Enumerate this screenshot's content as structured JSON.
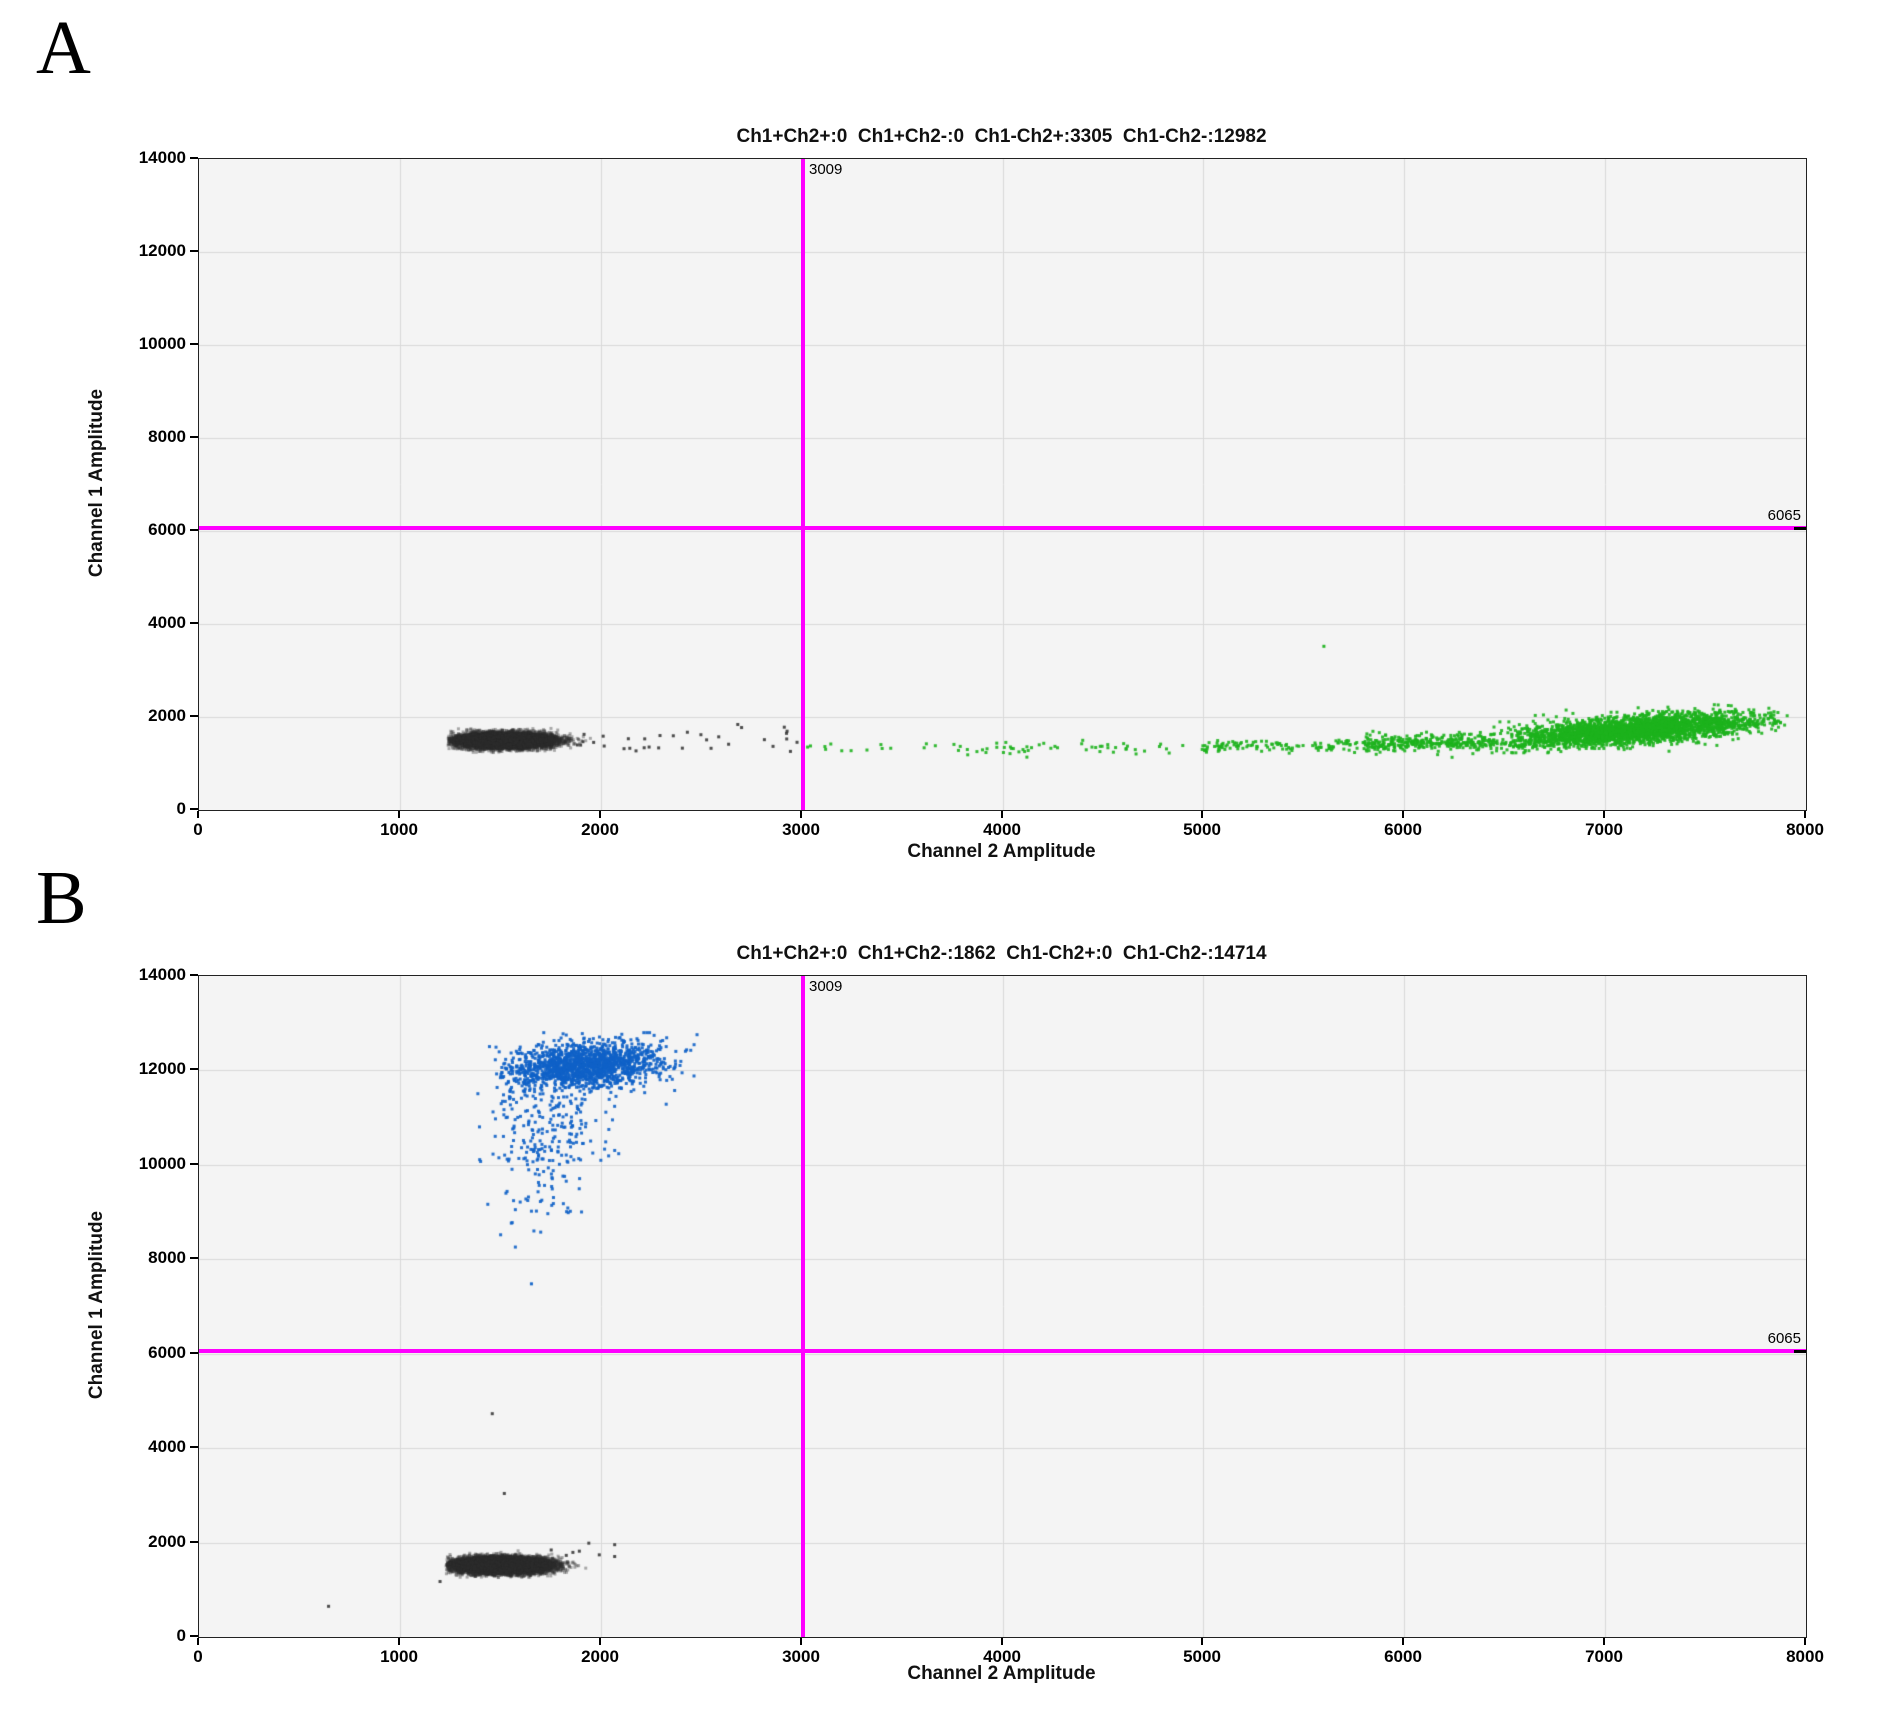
{
  "panel_letters": [
    "A",
    "B"
  ],
  "chart_data": [
    {
      "panel": "A",
      "type": "scatter",
      "title": "Ch1+Ch2+:0  Ch1+Ch2-:0  Ch1-Ch2+:3305  Ch1-Ch2-:12982",
      "quadrant_counts": {
        "ch1pos_ch2pos": 0,
        "ch1pos_ch2neg": 0,
        "ch1neg_ch2pos": 3305,
        "ch1neg_ch2neg": 12982
      },
      "xlabel": "Channel 2 Amplitude",
      "ylabel": "Channel 1 Amplitude",
      "xlim": [
        0,
        8000
      ],
      "ylim": [
        0,
        14000
      ],
      "x_ticks": [
        0,
        1000,
        2000,
        3000,
        4000,
        5000,
        6000,
        7000,
        8000
      ],
      "y_ticks": [
        0,
        2000,
        4000,
        6000,
        8000,
        10000,
        12000,
        14000
      ],
      "grid": true,
      "plot_bg": "#f4f4f4",
      "grid_color": "#d9d9d9",
      "thresholds": {
        "x": 3009,
        "y": 6065,
        "x_label": "3009",
        "y_label": "6065",
        "color": "#ff00ff"
      },
      "series": [
        {
          "name": "negative-droplets",
          "color": "#2e2e2e",
          "count": 12982,
          "clusters": [
            {
              "seed": 11,
              "shape": "gauss",
              "n": 12948,
              "alpha": 0.38,
              "cx": 1520,
              "cy": 1495,
              "sx": 112,
              "sy": 75,
              "xr": [
                1240,
                1960
              ],
              "yr": [
                1230,
                1900
              ]
            },
            {
              "seed": 12,
              "shape": "hband",
              "n": 34,
              "alpha": 0.85,
              "x0": 1850,
              "x1": 2980,
              "cy": 1530,
              "sy": 130,
              "slope": 0
            }
          ]
        },
        {
          "name": "ch2-positive-droplets",
          "color": "#1db31d",
          "count": 3305,
          "clusters": [
            {
              "seed": 21,
              "shape": "hband",
              "n": 25,
              "alpha": 0.9,
              "x0": 3020,
              "x1": 4000,
              "cy": 1345,
              "sy": 65,
              "slope": 0
            },
            {
              "seed": 22,
              "shape": "hband",
              "n": 45,
              "alpha": 0.9,
              "x0": 4000,
              "x1": 5000,
              "cy": 1355,
              "sy": 70,
              "slope": 0
            },
            {
              "seed": 23,
              "shape": "hband",
              "n": 114,
              "alpha": 0.9,
              "x0": 5000,
              "x1": 5800,
              "cy": 1370,
              "sy": 70,
              "slope": 0.02
            },
            {
              "seed": 24,
              "shape": "hband",
              "n": 330,
              "alpha": 0.9,
              "x0": 5800,
              "x1": 6450,
              "cy": 1420,
              "sy": 85,
              "slope": 0.06
            },
            {
              "seed": 25,
              "shape": "slant",
              "n": 2790,
              "alpha": 0.9,
              "cx": 7150,
              "sx": 310,
              "xr": [
                6420,
                7930
              ],
              "y0": 1720,
              "slope": 0.34,
              "sy": 145,
              "yr": [
                1230,
                2430
              ]
            },
            {
              "seed": 26,
              "shape": "points",
              "alpha": 0.95,
              "points": [
                [
                  5600,
                  3520
                ]
              ]
            }
          ]
        }
      ]
    },
    {
      "panel": "B",
      "type": "scatter",
      "title": "Ch1+Ch2+:0  Ch1+Ch2-:1862  Ch1-Ch2+:0  Ch1-Ch2-:14714",
      "quadrant_counts": {
        "ch1pos_ch2pos": 0,
        "ch1pos_ch2neg": 1862,
        "ch1neg_ch2pos": 0,
        "ch1neg_ch2neg": 14714
      },
      "xlabel": "Channel 2 Amplitude",
      "ylabel": "Channel 1 Amplitude",
      "xlim": [
        0,
        8000
      ],
      "ylim": [
        0,
        14000
      ],
      "x_ticks": [
        0,
        1000,
        2000,
        3000,
        4000,
        5000,
        6000,
        7000,
        8000
      ],
      "y_ticks": [
        0,
        2000,
        4000,
        6000,
        8000,
        10000,
        12000,
        14000
      ],
      "grid": true,
      "plot_bg": "#f4f4f4",
      "grid_color": "#d9d9d9",
      "thresholds": {
        "x": 3009,
        "y": 6065,
        "x_label": "3009",
        "y_label": "6065",
        "color": "#ff00ff"
      },
      "series": [
        {
          "name": "negative-droplets",
          "color": "#2e2e2e",
          "count": 14714,
          "clusters": [
            {
              "seed": 31,
              "shape": "gauss",
              "n": 14702,
              "alpha": 0.38,
              "cx": 1505,
              "cy": 1520,
              "sx": 108,
              "sy": 78,
              "xr": [
                1230,
                1960
              ],
              "yr": [
                1260,
                1990
              ]
            },
            {
              "seed": 32,
              "shape": "hband",
              "n": 8,
              "alpha": 0.85,
              "x0": 1750,
              "x1": 2120,
              "cy": 1820,
              "sy": 110,
              "slope": 0
            },
            {
              "seed": 33,
              "shape": "points",
              "alpha": 0.85,
              "points": [
                [
                  1460,
                  4730
                ],
                [
                  1520,
                  3040
                ],
                [
                  1200,
                  1175
                ],
                [
                  645,
                  650
                ]
              ]
            }
          ]
        },
        {
          "name": "ch1-positive-droplets",
          "color": "#0f62c8",
          "count": 1862,
          "clusters": [
            {
              "seed": 41,
              "shape": "slant",
              "n": 1600,
              "alpha": 0.9,
              "cx": 1920,
              "sx": 190,
              "xr": [
                1440,
                2530
              ],
              "y0": 12100,
              "slope": 0.25,
              "sy": 240,
              "yr": [
                11250,
                12800
              ]
            },
            {
              "seed": 42,
              "shape": "vband",
              "n": 200,
              "alpha": 0.9,
              "y0": 10050,
              "y1": 11650,
              "cx": 1740,
              "sx": 150
            },
            {
              "seed": 43,
              "shape": "vband",
              "n": 50,
              "alpha": 0.9,
              "y0": 8950,
              "y1": 10150,
              "cx": 1690,
              "sx": 125
            },
            {
              "seed": 44,
              "shape": "vband",
              "n": 11,
              "alpha": 0.9,
              "y0": 8250,
              "y1": 9250,
              "cx": 1670,
              "sx": 100
            },
            {
              "seed": 45,
              "shape": "points",
              "alpha": 0.95,
              "points": [
                [
                  1655,
                  7480
                ]
              ]
            }
          ]
        }
      ]
    }
  ]
}
